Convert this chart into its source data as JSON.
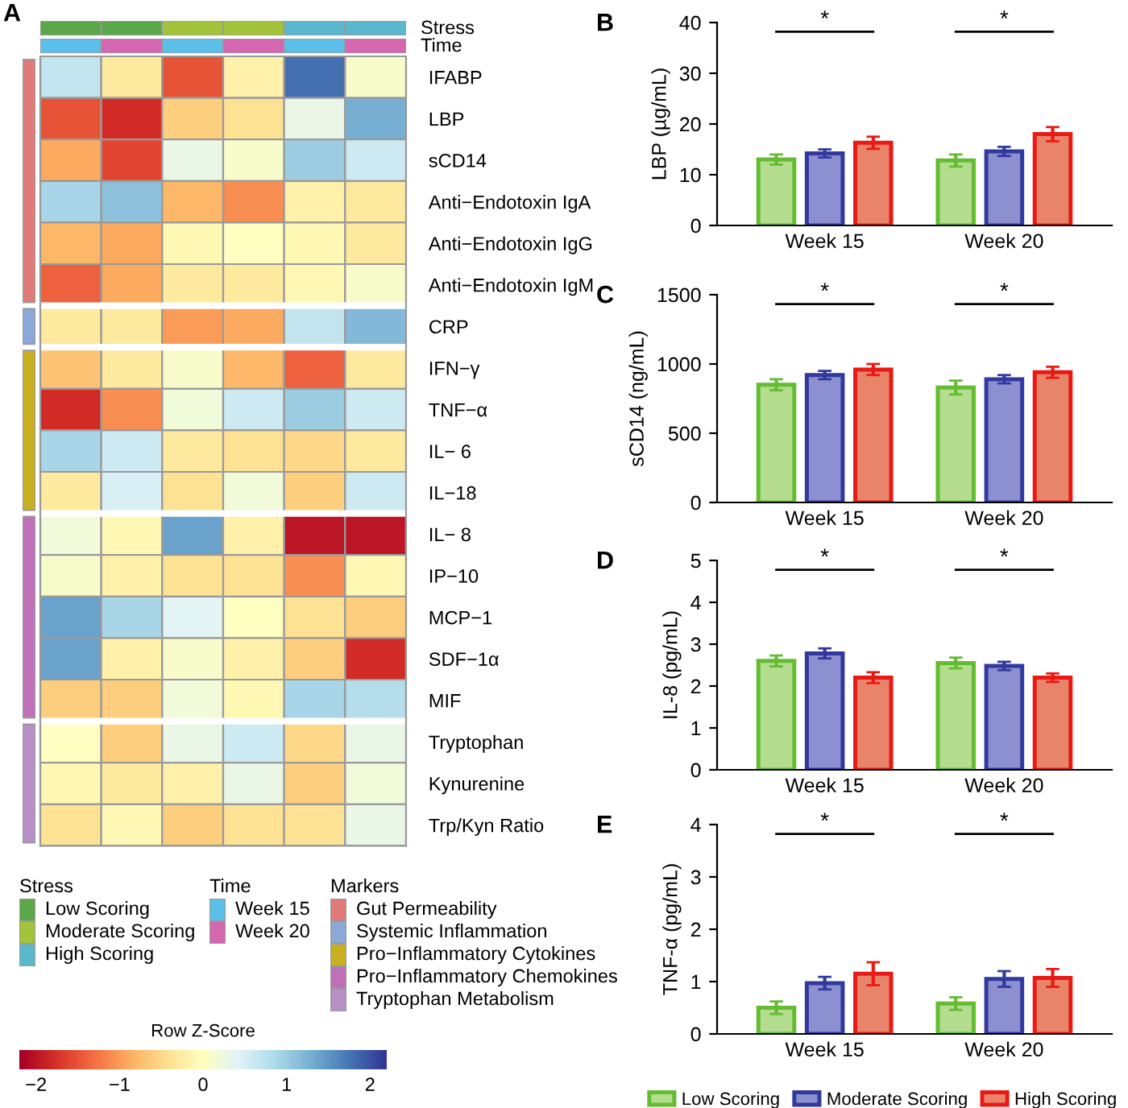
{
  "chart_data": [
    {
      "type": "heatmap",
      "title": "A",
      "annotations": [
        "Stress",
        "Time"
      ],
      "categories": [
        null,
        null,
        null,
        null,
        null,
        null
      ],
      "y_categories": [
        "IFABP",
        "LBP",
        "sCD14",
        "Anti−Endotoxin IgA",
        "Anti−Endotoxin IgG",
        "Anti−Endotoxin IgM",
        "CRP",
        "IFN−γ",
        "TNF−α",
        "IL− 6",
        "IL−18",
        "IL− 8",
        "IP−10",
        "MCP−1",
        "SDF−1α",
        "MIF",
        "Tryptophan",
        "Kynurenine",
        "Trp/Kyn Ratio"
      ],
      "clim": [
        -2.2,
        2.2
      ],
      "clabel": "Row Z-Score",
      "cticks": [
        {
          "value": -2,
          "label": "−2"
        },
        {
          "value": -1,
          "label": "−1"
        },
        0,
        1,
        2
      ],
      "cells": [
        [
          0.7,
          -0.3,
          -1.5,
          -0.2,
          1.8,
          0.1
        ],
        [
          -1.5,
          -1.8,
          -0.6,
          -0.4,
          0.3,
          1.3
        ],
        [
          -0.9,
          -1.6,
          0.3,
          0.1,
          1.0,
          0.6
        ],
        [
          0.9,
          1.1,
          -0.8,
          -1.1,
          -0.2,
          -0.3
        ],
        [
          -0.8,
          -0.9,
          -0.1,
          0.0,
          -0.1,
          -0.3
        ],
        [
          -1.4,
          -0.9,
          -0.3,
          -0.3,
          -0.1,
          0.1
        ],
        [
          -0.3,
          -0.3,
          -1.0,
          -0.9,
          0.7,
          1.2
        ],
        [
          -0.7,
          -0.3,
          0.1,
          -0.8,
          -1.4,
          -0.3
        ],
        [
          -1.8,
          -1.1,
          0.2,
          0.6,
          1.0,
          0.6
        ],
        [
          0.9,
          0.6,
          -0.3,
          -0.4,
          -0.5,
          -0.3
        ],
        [
          -0.3,
          0.5,
          -0.4,
          0.2,
          -0.6,
          0.6
        ],
        [
          0.2,
          -0.1,
          1.4,
          -0.2,
          -2.0,
          -2.0
        ],
        [
          0.1,
          -0.2,
          -0.4,
          -0.4,
          -1.1,
          -0.1
        ],
        [
          1.4,
          0.9,
          0.4,
          0.0,
          -0.4,
          -0.6
        ],
        [
          1.4,
          -0.2,
          0.1,
          -0.2,
          -0.6,
          -1.8
        ],
        [
          -0.6,
          -0.6,
          0.2,
          -0.1,
          0.9,
          0.8
        ],
        [
          0.0,
          -0.6,
          0.3,
          0.6,
          -0.5,
          0.3
        ],
        [
          -0.1,
          -0.3,
          -0.2,
          0.3,
          -0.6,
          0.2
        ],
        [
          -0.4,
          -0.1,
          -0.6,
          -0.4,
          -0.4,
          0.3
        ]
      ]
    },
    {
      "type": "other",
      "legend_title": "Stress",
      "series": [
        {
          "name": "Low Scoring",
          "color": "#5aa84a"
        },
        {
          "name": "Moderate Scoring",
          "color": "#a3c43a"
        },
        {
          "name": "High Scoring",
          "color": "#5bb8cc"
        }
      ]
    },
    {
      "type": "other",
      "legend_title": "Time",
      "series": [
        {
          "name": "Week 15",
          "color": "#5bbfea"
        },
        {
          "name": "Week 20",
          "color": "#d467b0"
        }
      ]
    },
    {
      "type": "other",
      "legend_title": "Markers",
      "series": [
        {
          "name": "Gut Permeability",
          "color": "#e07a78"
        },
        {
          "name": "Systemic Inflammation",
          "color": "#8aa8d8"
        },
        {
          "name": "Pro−Inflammatory Cytokines",
          "color": "#c8b020"
        },
        {
          "name": "Pro−Inflammatory Chemokines",
          "color": "#c070b8"
        },
        {
          "name": "Tryptophan Metabolism",
          "color": "#b890c8"
        }
      ]
    },
    {
      "type": "bar",
      "title": "B",
      "ylabel": "LBP (µg/mL)",
      "categories": [
        "Week 15",
        "Week 20"
      ],
      "ylim": [
        0,
        40
      ],
      "yticks": [
        0,
        10,
        20,
        30,
        40
      ],
      "annotations": [
        "*",
        "*"
      ],
      "series": [
        {
          "color": "#b5dd8f",
          "values": [
            13,
            12.8
          ],
          "errors": [
            1,
            1.2
          ]
        },
        {
          "color": "#8c90d0",
          "values": [
            14.2,
            14.6
          ],
          "errors": [
            0.8,
            0.9
          ]
        },
        {
          "color": "#e8846a",
          "values": [
            16.3,
            18
          ],
          "errors": [
            1.2,
            1.4
          ]
        }
      ]
    },
    {
      "type": "bar",
      "title": "C",
      "ylabel": "sCD14 (ng/mL)",
      "categories": [
        "Week 15",
        "Week 20"
      ],
      "ylim": [
        0,
        1500
      ],
      "yticks": [
        0,
        500,
        1000,
        1500
      ],
      "annotations": [
        "*",
        "*"
      ],
      "series": [
        {
          "color": "#b5dd8f",
          "values": [
            850,
            830
          ],
          "errors": [
            40,
            50
          ]
        },
        {
          "color": "#8c90d0",
          "values": [
            920,
            890
          ],
          "errors": [
            30,
            30
          ]
        },
        {
          "color": "#e8846a",
          "values": [
            960,
            940
          ],
          "errors": [
            40,
            40
          ]
        }
      ]
    },
    {
      "type": "bar",
      "title": "D",
      "ylabel": "IL-8 (pg/mL)",
      "categories": [
        "Week 15",
        "Week 20"
      ],
      "ylim": [
        0,
        5
      ],
      "yticks": [
        0,
        1,
        2,
        3,
        4,
        5
      ],
      "annotations": [
        "*",
        "*"
      ],
      "series": [
        {
          "color": "#b5dd8f",
          "values": [
            2.6,
            2.55
          ],
          "errors": [
            0.13,
            0.13
          ]
        },
        {
          "color": "#8c90d0",
          "values": [
            2.78,
            2.48
          ],
          "errors": [
            0.12,
            0.1
          ]
        },
        {
          "color": "#e8846a",
          "values": [
            2.2,
            2.2
          ],
          "errors": [
            0.13,
            0.1
          ]
        }
      ]
    },
    {
      "type": "bar",
      "title": "E",
      "ylabel": "TNF-α (pg/mL)",
      "categories": [
        "Week 15",
        "Week 20"
      ],
      "ylim": [
        0,
        4
      ],
      "yticks": [
        0,
        1,
        2,
        3,
        4
      ],
      "legend": "bottom",
      "annotations": [
        "*",
        "*"
      ],
      "series": [
        {
          "name": "Low Scoring",
          "color": "#b5dd8f",
          "values": [
            0.5,
            0.58
          ],
          "errors": [
            0.12,
            0.12
          ]
        },
        {
          "name": "Moderate Scoring",
          "color": "#8c90d0",
          "values": [
            0.97,
            1.05
          ],
          "errors": [
            0.12,
            0.15
          ]
        },
        {
          "name": "High Scoring",
          "color": "#e8846a",
          "values": [
            1.15,
            1.07
          ],
          "errors": [
            0.22,
            0.17
          ]
        }
      ]
    }
  ]
}
